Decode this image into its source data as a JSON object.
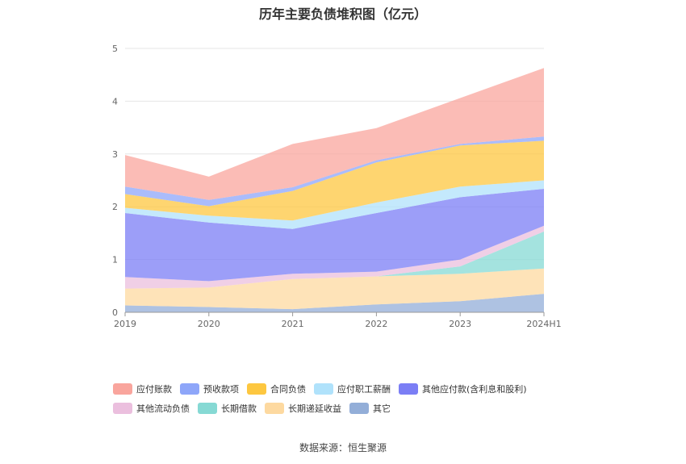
{
  "chart_data": {
    "type": "area",
    "stacked": true,
    "title": "历年主要负债堆积图（亿元）",
    "categories": [
      "2019",
      "2020",
      "2021",
      "2022",
      "2023",
      "2024H1"
    ],
    "ylim": [
      0,
      5
    ],
    "yticks": [
      "0",
      "1",
      "2",
      "3",
      "4",
      "5"
    ],
    "grid": true,
    "legend_position": "bottom",
    "series": [
      {
        "name": "其它",
        "color": "#93aed8",
        "values": [
          0.13,
          0.1,
          0.06,
          0.15,
          0.21,
          0.35
        ]
      },
      {
        "name": "长期递延收益",
        "color": "#fdd9a0",
        "values": [
          0.32,
          0.37,
          0.57,
          0.53,
          0.52,
          0.48
        ]
      },
      {
        "name": "长期借款",
        "color": "#86d9d4",
        "values": [
          0.0,
          0.0,
          0.0,
          0.0,
          0.14,
          0.7
        ]
      },
      {
        "name": "其他流动负债",
        "color": "#ebbfde",
        "values": [
          0.22,
          0.12,
          0.1,
          0.09,
          0.13,
          0.11
        ]
      },
      {
        "name": "其他应付款(含利息和股利)",
        "color": "#7b7ef5",
        "values": [
          1.21,
          1.11,
          0.85,
          1.11,
          1.18,
          0.7
        ]
      },
      {
        "name": "应付职工薪酬",
        "color": "#b0e2fb",
        "values": [
          0.1,
          0.13,
          0.16,
          0.2,
          0.2,
          0.16
        ]
      },
      {
        "name": "合同负债",
        "color": "#fdc740",
        "values": [
          0.26,
          0.18,
          0.56,
          0.76,
          0.78,
          0.75
        ]
      },
      {
        "name": "预收款项",
        "color": "#8ea6f9",
        "values": [
          0.14,
          0.12,
          0.07,
          0.04,
          0.03,
          0.08
        ]
      },
      {
        "name": "应付账款",
        "color": "#f9a59d",
        "values": [
          0.6,
          0.44,
          0.82,
          0.61,
          0.87,
          1.3
        ]
      }
    ],
    "legend_order": [
      "应付账款",
      "预收款项",
      "合同负债",
      "应付职工薪酬",
      "其他应付款(含利息和股利)",
      "其他流动负债",
      "长期借款",
      "长期递延收益",
      "其它"
    ]
  },
  "source": {
    "label": "数据来源：",
    "value": "恒生聚源"
  }
}
